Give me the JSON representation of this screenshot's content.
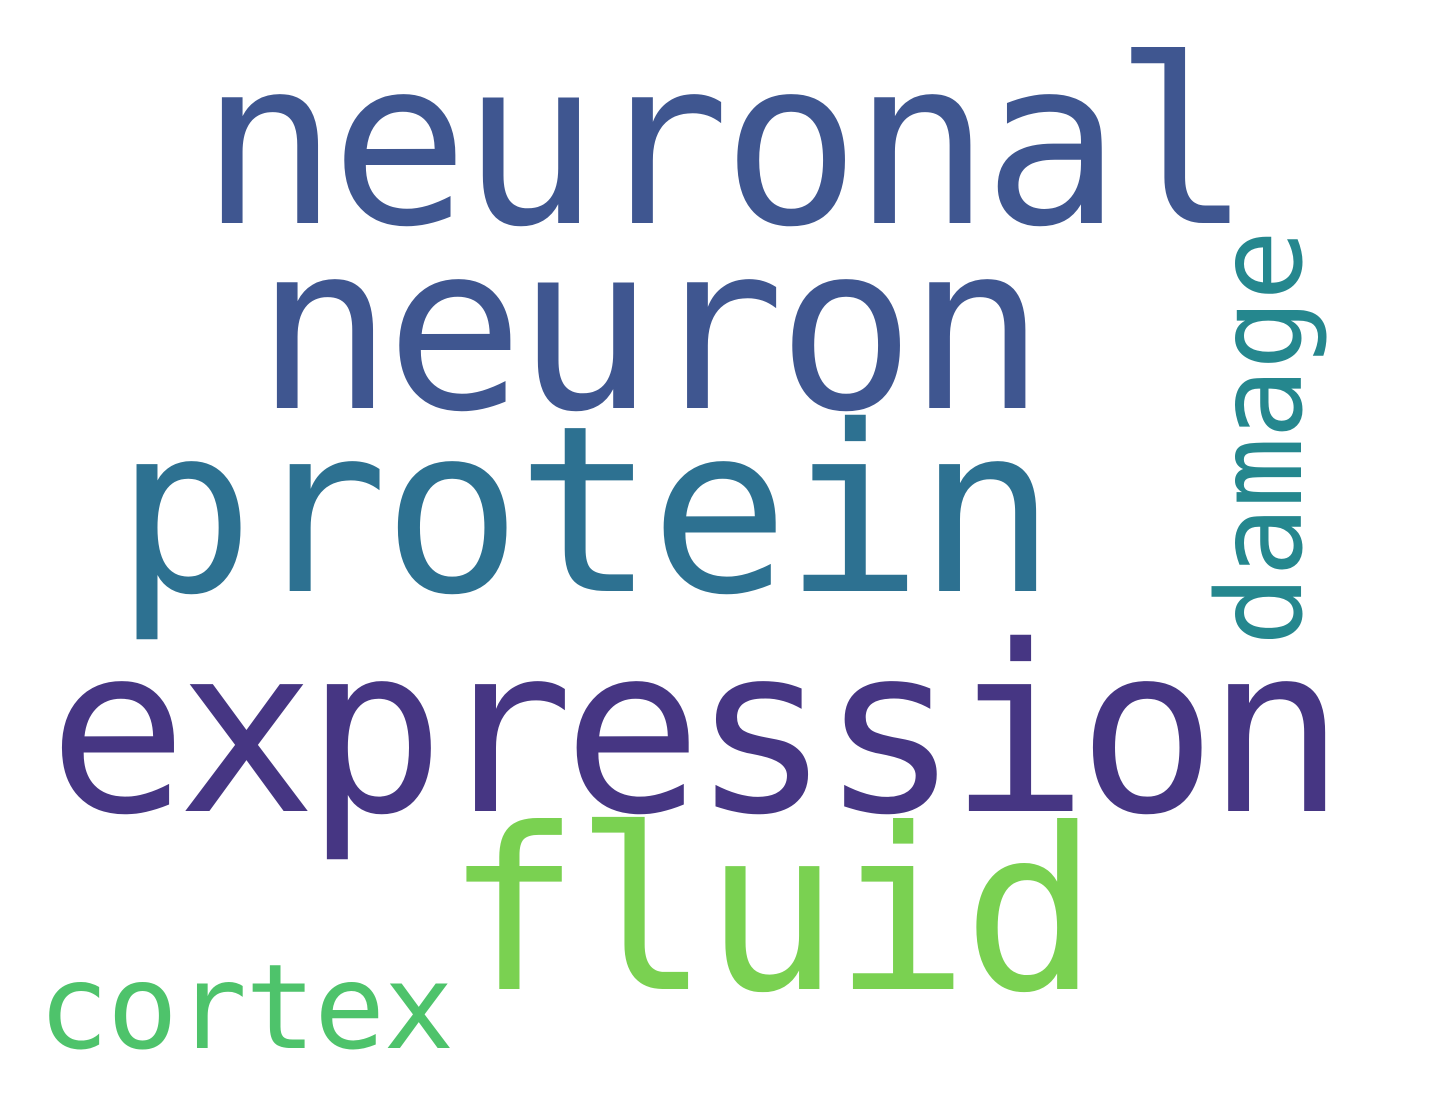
{
  "words": [
    {
      "text": "neuronal",
      "color": "#3f5690"
    },
    {
      "text": "neuron",
      "color": "#3f5690"
    },
    {
      "text": "protein",
      "color": "#2d7191"
    },
    {
      "text": "expression",
      "color": "#463683"
    },
    {
      "text": "fluid",
      "color": "#7ad151"
    },
    {
      "text": "cortex",
      "color": "#4ec36b"
    },
    {
      "text": "damage",
      "color": "#25878e"
    }
  ]
}
